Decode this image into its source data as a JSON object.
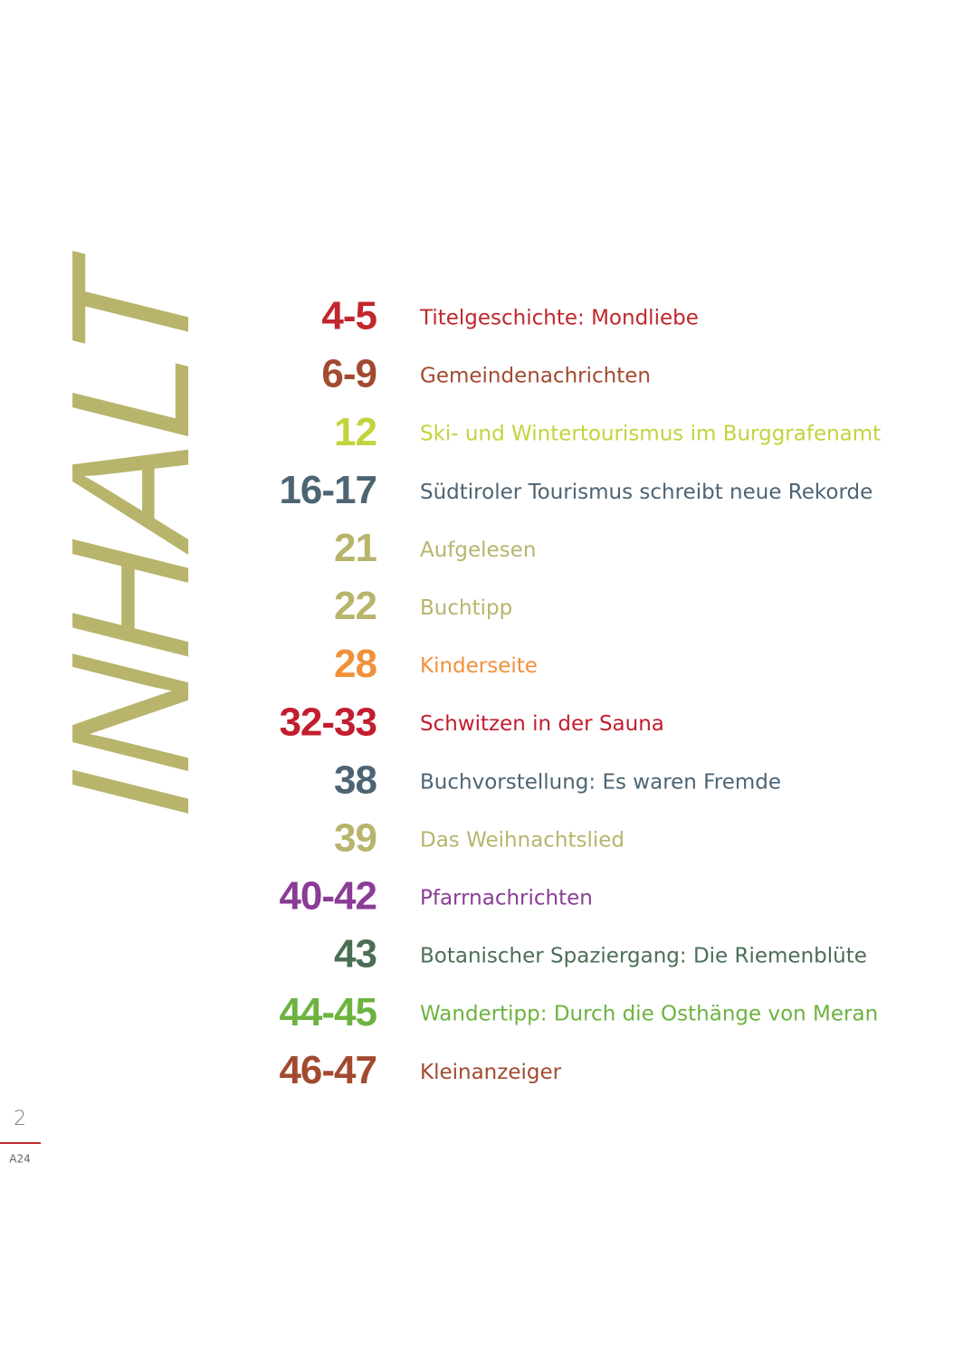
{
  "title": "INHALT",
  "title_color": "#b8b46c",
  "entries": [
    {
      "pages": "4-5",
      "title": "Titelgeschichte: Mondliebe",
      "color": "#c0272d"
    },
    {
      "pages": "6-9",
      "title": "Gemeindenachrichten",
      "color": "#a24a30"
    },
    {
      "pages": "12",
      "title": "Ski- und Wintertourismus im Burggrafenamt",
      "color": "#c3d33b"
    },
    {
      "pages": "16-17",
      "title": "Südtiroler Tourismus schreibt neue Rekorde",
      "color": "#4d6473"
    },
    {
      "pages": "21",
      "title": "Aufgelesen",
      "color": "#b8b46c"
    },
    {
      "pages": "22",
      "title": "Buchtipp",
      "color": "#b8b46c"
    },
    {
      "pages": "28",
      "title": "Kinderseite",
      "color": "#f0913a"
    },
    {
      "pages": "32-33",
      "title": "Schwitzen in der Sauna",
      "color": "#c21d2e"
    },
    {
      "pages": "38",
      "title": "Buchvorstellung: Es waren Fremde",
      "color": "#4d6473"
    },
    {
      "pages": "39",
      "title": "Das Weihnachtslied",
      "color": "#b8b46c"
    },
    {
      "pages": "40-42",
      "title": "Pfarrnachrichten",
      "color": "#8a3c96"
    },
    {
      "pages": "43",
      "title": "Botanischer Spaziergang: Die Riemenblüte",
      "color": "#4c6e55"
    },
    {
      "pages": "44-45",
      "title": "Wandertipp: Durch die Osthänge von Meran",
      "color": "#6cb33f"
    },
    {
      "pages": "46-47",
      "title": "Kleinanzeiger",
      "color": "#a24a30"
    }
  ],
  "footer": {
    "page_number": "2",
    "label": "A24"
  }
}
